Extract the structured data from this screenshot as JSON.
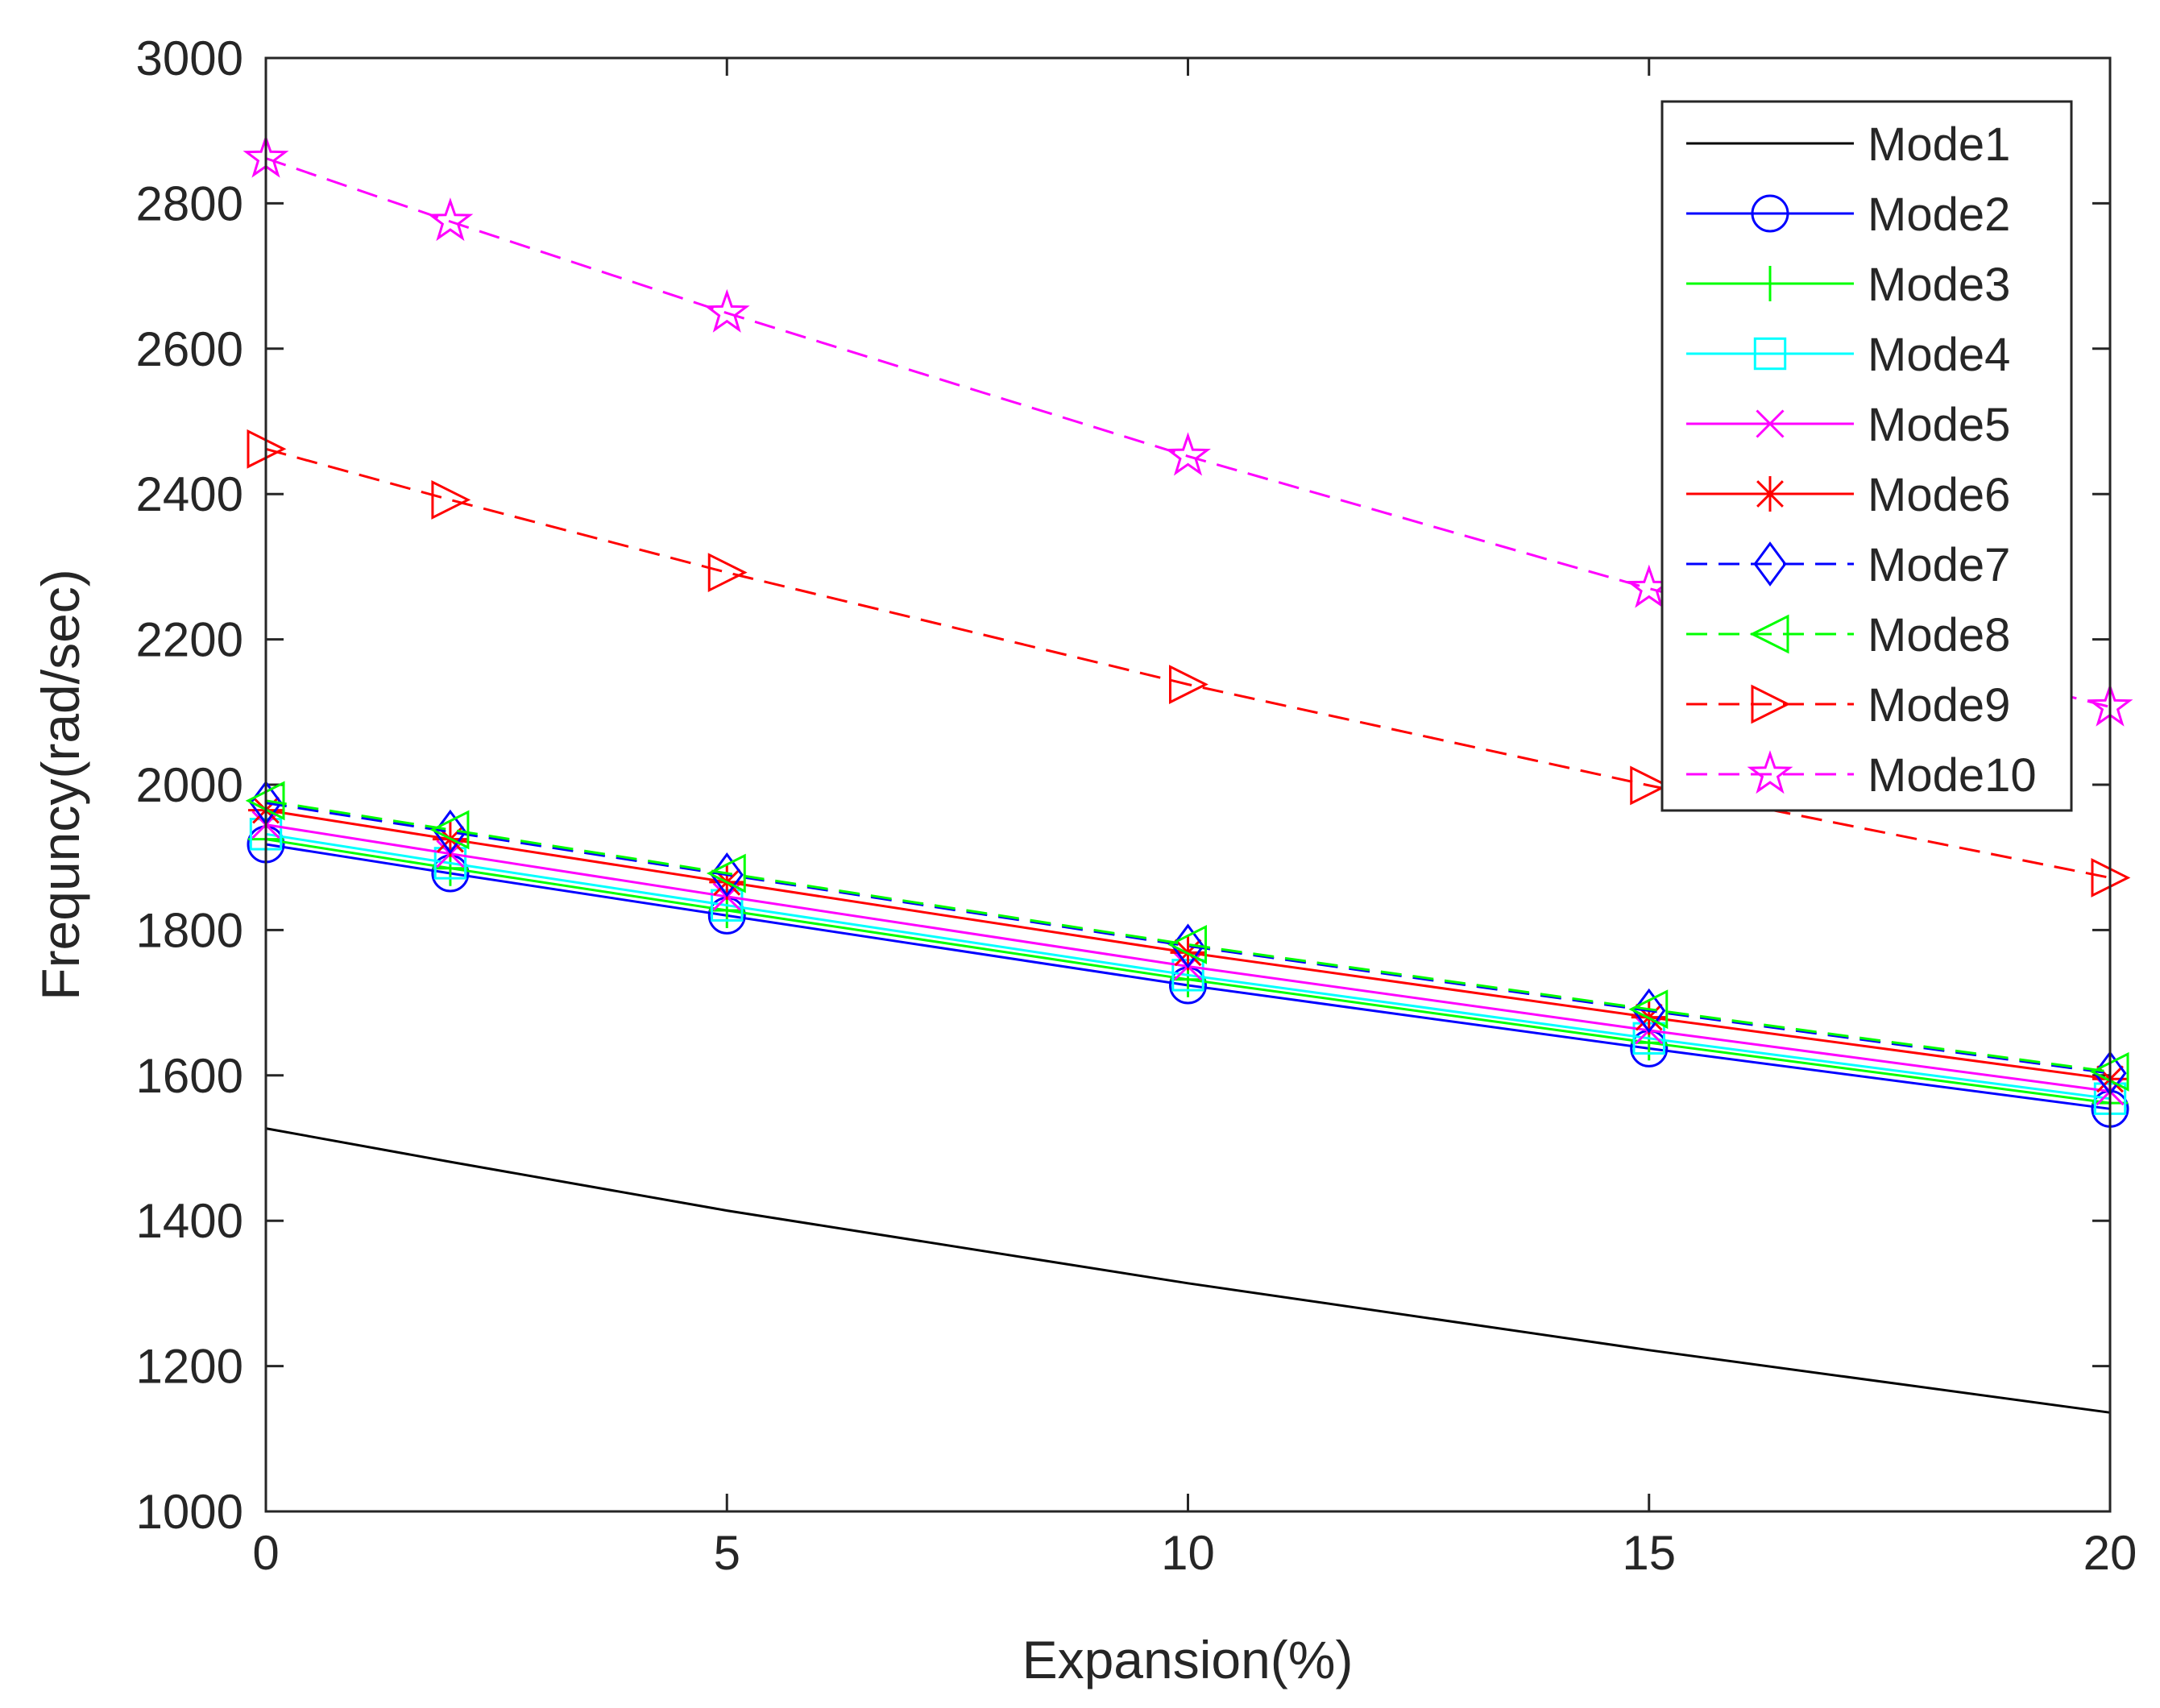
{
  "chart_data": {
    "type": "line",
    "title": "",
    "xlabel": "Expansion(%)",
    "ylabel": "Frequncy(rad/sec)",
    "xlim": [
      0,
      20
    ],
    "ylim": [
      1000,
      3000
    ],
    "xticks": [
      0,
      5,
      10,
      15,
      20
    ],
    "yticks": [
      1000,
      1200,
      1400,
      1600,
      1800,
      2000,
      2200,
      2400,
      2600,
      2800,
      3000
    ],
    "x": [
      0,
      2,
      5,
      10,
      15,
      20
    ],
    "legend_position": "top-right",
    "series": [
      {
        "name": "Mode1",
        "color": "#000000",
        "dash": false,
        "marker": "none",
        "values": [
          1527,
          1481,
          1414,
          1314,
          1222,
          1136
        ]
      },
      {
        "name": "Mode2",
        "color": "#0000ff",
        "dash": false,
        "marker": "circle",
        "values": [
          1918,
          1878,
          1820,
          1724,
          1637,
          1554
        ]
      },
      {
        "name": "Mode3",
        "color": "#00ff00",
        "dash": false,
        "marker": "plus",
        "values": [
          1925,
          1885,
          1827,
          1732,
          1645,
          1562
        ]
      },
      {
        "name": "Mode4",
        "color": "#00ffff",
        "dash": false,
        "marker": "square",
        "values": [
          1932,
          1892,
          1834,
          1738,
          1651,
          1568
        ]
      },
      {
        "name": "Mode5",
        "color": "#ff00ff",
        "dash": false,
        "marker": "x",
        "values": [
          1945,
          1905,
          1846,
          1750,
          1662,
          1578
        ]
      },
      {
        "name": "Mode6",
        "color": "#ff0000",
        "dash": false,
        "marker": "asterisk",
        "values": [
          1965,
          1925,
          1866,
          1769,
          1680,
          1595
        ]
      },
      {
        "name": "Mode7",
        "color": "#0000ff",
        "dash": true,
        "marker": "diamond",
        "values": [
          1975,
          1935,
          1876,
          1778,
          1689,
          1603
        ]
      },
      {
        "name": "Mode8",
        "color": "#00ff00",
        "dash": true,
        "marker": "tri-left",
        "values": [
          1978,
          1938,
          1878,
          1780,
          1691,
          1605
        ]
      },
      {
        "name": "Mode9",
        "color": "#ff0000",
        "dash": true,
        "marker": "tri-right",
        "values": [
          2462,
          2392,
          2292,
          2138,
          1999,
          1872
        ]
      },
      {
        "name": "Mode10",
        "color": "#ff00ff",
        "dash": true,
        "marker": "star",
        "values": [
          2862,
          2775,
          2649,
          2452,
          2270,
          2107
        ]
      }
    ]
  }
}
